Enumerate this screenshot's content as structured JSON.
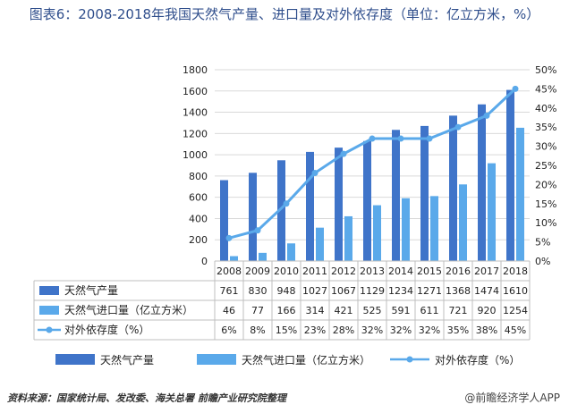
{
  "title": "图表6：2008-2018年我国天然气产量、进口量及对外依存度（单位：亿立方米，%）",
  "source": "资料来源：国家统计局、发改委、海关总署 前瞻产业研究院整理",
  "brand": "@前瞻经济学人APP",
  "colors": {
    "production": "#3f74c9",
    "imports": "#5aa9ea",
    "dependency": "#5aa9ea",
    "grid": "#d9d9d9",
    "title": "#2f4e8c"
  },
  "chart_data": {
    "type": "bar",
    "categories": [
      "2008",
      "2009",
      "2010",
      "2011",
      "2012",
      "2013",
      "2014",
      "2015",
      "2016",
      "2017",
      "2018"
    ],
    "series": [
      {
        "name": "天然气产量",
        "type": "bar",
        "axis": "left",
        "values": [
          761,
          830,
          948,
          1027,
          1067,
          1129,
          1234,
          1271,
          1368,
          1474,
          1610
        ],
        "labels": [
          "761",
          "830",
          "948",
          "1027",
          "1067",
          "1129",
          "1234",
          "1271",
          "1368",
          "1474",
          "1610"
        ]
      },
      {
        "name": "天然气进口量（亿立方米）",
        "type": "bar",
        "axis": "left",
        "values": [
          46,
          77,
          166,
          314,
          421,
          525,
          591,
          611,
          721,
          920,
          1254
        ],
        "labels": [
          "46",
          "77",
          "166",
          "314",
          "421",
          "525",
          "591",
          "611",
          "721",
          "920",
          "1254"
        ]
      },
      {
        "name": "对外依存度（%）",
        "type": "line",
        "axis": "right",
        "values": [
          6,
          8,
          15,
          23,
          28,
          32,
          32,
          32,
          35,
          38,
          45
        ],
        "labels": [
          "6%",
          "8%",
          "15%",
          "23%",
          "28%",
          "32%",
          "32%",
          "32%",
          "35%",
          "38%",
          "45%"
        ]
      }
    ],
    "y_left": {
      "min": 0,
      "max": 1800,
      "ticks": [
        "0",
        "200",
        "400",
        "600",
        "800",
        "1000",
        "1200",
        "1400",
        "1600",
        "1800"
      ]
    },
    "y_right": {
      "min": 0,
      "max": 50,
      "ticks": [
        "0%",
        "5%",
        "10%",
        "15%",
        "20%",
        "25%",
        "30%",
        "35%",
        "40%",
        "45%",
        "50%"
      ]
    },
    "grid": true,
    "legend_position": "bottom",
    "data_table": true
  }
}
